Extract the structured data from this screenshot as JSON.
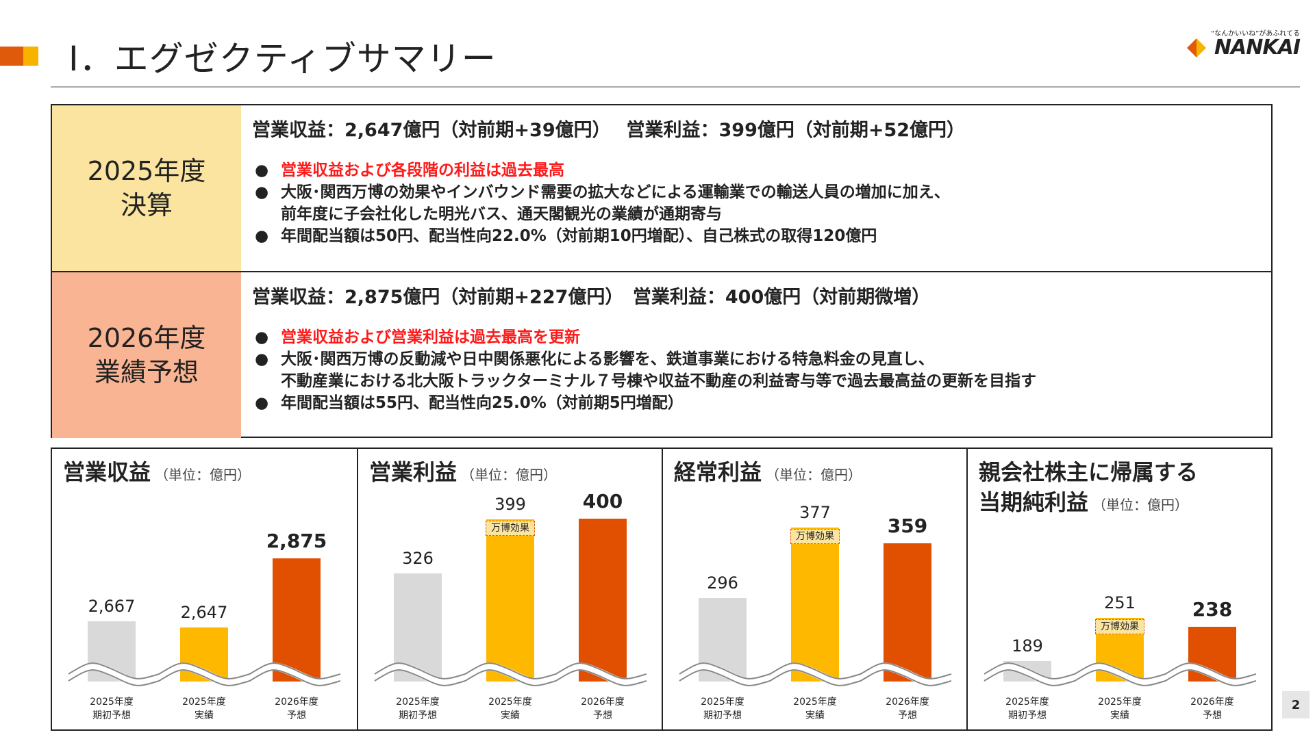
{
  "header": {
    "title": "Ⅰ．エグゼクティブサマリー",
    "logo_tagline": "“なんかいいね”があふれてる",
    "logo_text": "NANKAI",
    "colors": {
      "accent_orange": "#e05a0c",
      "accent_yellow": "#f6b300",
      "gray": "#d9d9d9"
    }
  },
  "summary": {
    "rows": [
      {
        "label_line1": "2025年度",
        "label_line2": "決算",
        "headline": "営業収益：2,647億円（対前期+39億円）　 営業利益：399億円（対前期+52億円）",
        "bullets": [
          "営業収益および各段階の利益は過去最高",
          "大阪･関西万博の効果やインバウンド需要の拡大などによる運輸業での輸送人員の増加に加え、",
          "前年度に子会社化した明光バス、通天閣観光の業績が通期寄与",
          "年間配当額は50円、配当性向22.0%（対前期10円増配）、自己株式の取得120億円"
        ]
      },
      {
        "label_line1": "2026年度",
        "label_line2": "業績予想",
        "headline": "営業収益：2,875億円（対前期+227億円）　営業利益：400億円（対前期微増）",
        "bullets": [
          "営業収益および営業利益は過去最高を更新",
          "大阪･関西万博の反動減や日中関係悪化による影響を、鉄道事業における特急料金の見直し、",
          "不動産業における北大阪トラックターミナル７号棟や収益不動産の利益寄与等で過去最高益の更新を目指す",
          "年間配当額は55円、配当性向25.0%（対前期5円増配）"
        ]
      }
    ]
  },
  "chart_data": [
    {
      "type": "bar",
      "title": "営業収益",
      "unit_label": "（単位：億円）",
      "categories": [
        "2025年度\n期初予想",
        "2025年度\n実績",
        "2026年度\n予想"
      ],
      "values": [
        2667,
        2647,
        2875
      ],
      "value_labels": [
        "2,667",
        "2,647",
        "2,875"
      ],
      "badges": [
        "",
        "",
        ""
      ],
      "colors": [
        "#d9d9d9",
        "#ffb800",
        "#e05000"
      ],
      "axis_break": true
    },
    {
      "type": "bar",
      "title": "営業利益",
      "unit_label": "（単位：億円）",
      "categories": [
        "2025年度\n期初予想",
        "2025年度\n実績",
        "2026年度\n予想"
      ],
      "values": [
        326,
        399,
        400
      ],
      "value_labels": [
        "326",
        "399",
        "400"
      ],
      "badges": [
        "",
        "万博効果",
        ""
      ],
      "colors": [
        "#d9d9d9",
        "#ffb800",
        "#e05000"
      ],
      "axis_break": true
    },
    {
      "type": "bar",
      "title": "経常利益",
      "unit_label": "（単位：億円）",
      "categories": [
        "2025年度\n期初予想",
        "2025年度\n実績",
        "2026年度\n予想"
      ],
      "values": [
        296,
        377,
        359
      ],
      "value_labels": [
        "296",
        "377",
        "359"
      ],
      "badges": [
        "",
        "万博効果",
        ""
      ],
      "colors": [
        "#d9d9d9",
        "#ffb800",
        "#e05000"
      ],
      "axis_break": true
    },
    {
      "type": "bar",
      "title": "親会社株主に帰属する",
      "title_line2": "当期純利益",
      "unit_label": "（単位：億円）",
      "categories": [
        "2025年度\n期初予想",
        "2025年度\n実績",
        "2026年度\n予想"
      ],
      "values": [
        189,
        251,
        238
      ],
      "value_labels": [
        "189",
        "251",
        "238"
      ],
      "badges": [
        "",
        "万博効果",
        ""
      ],
      "colors": [
        "#d9d9d9",
        "#ffb800",
        "#e05000"
      ],
      "axis_break": true
    }
  ],
  "page_number": "2"
}
